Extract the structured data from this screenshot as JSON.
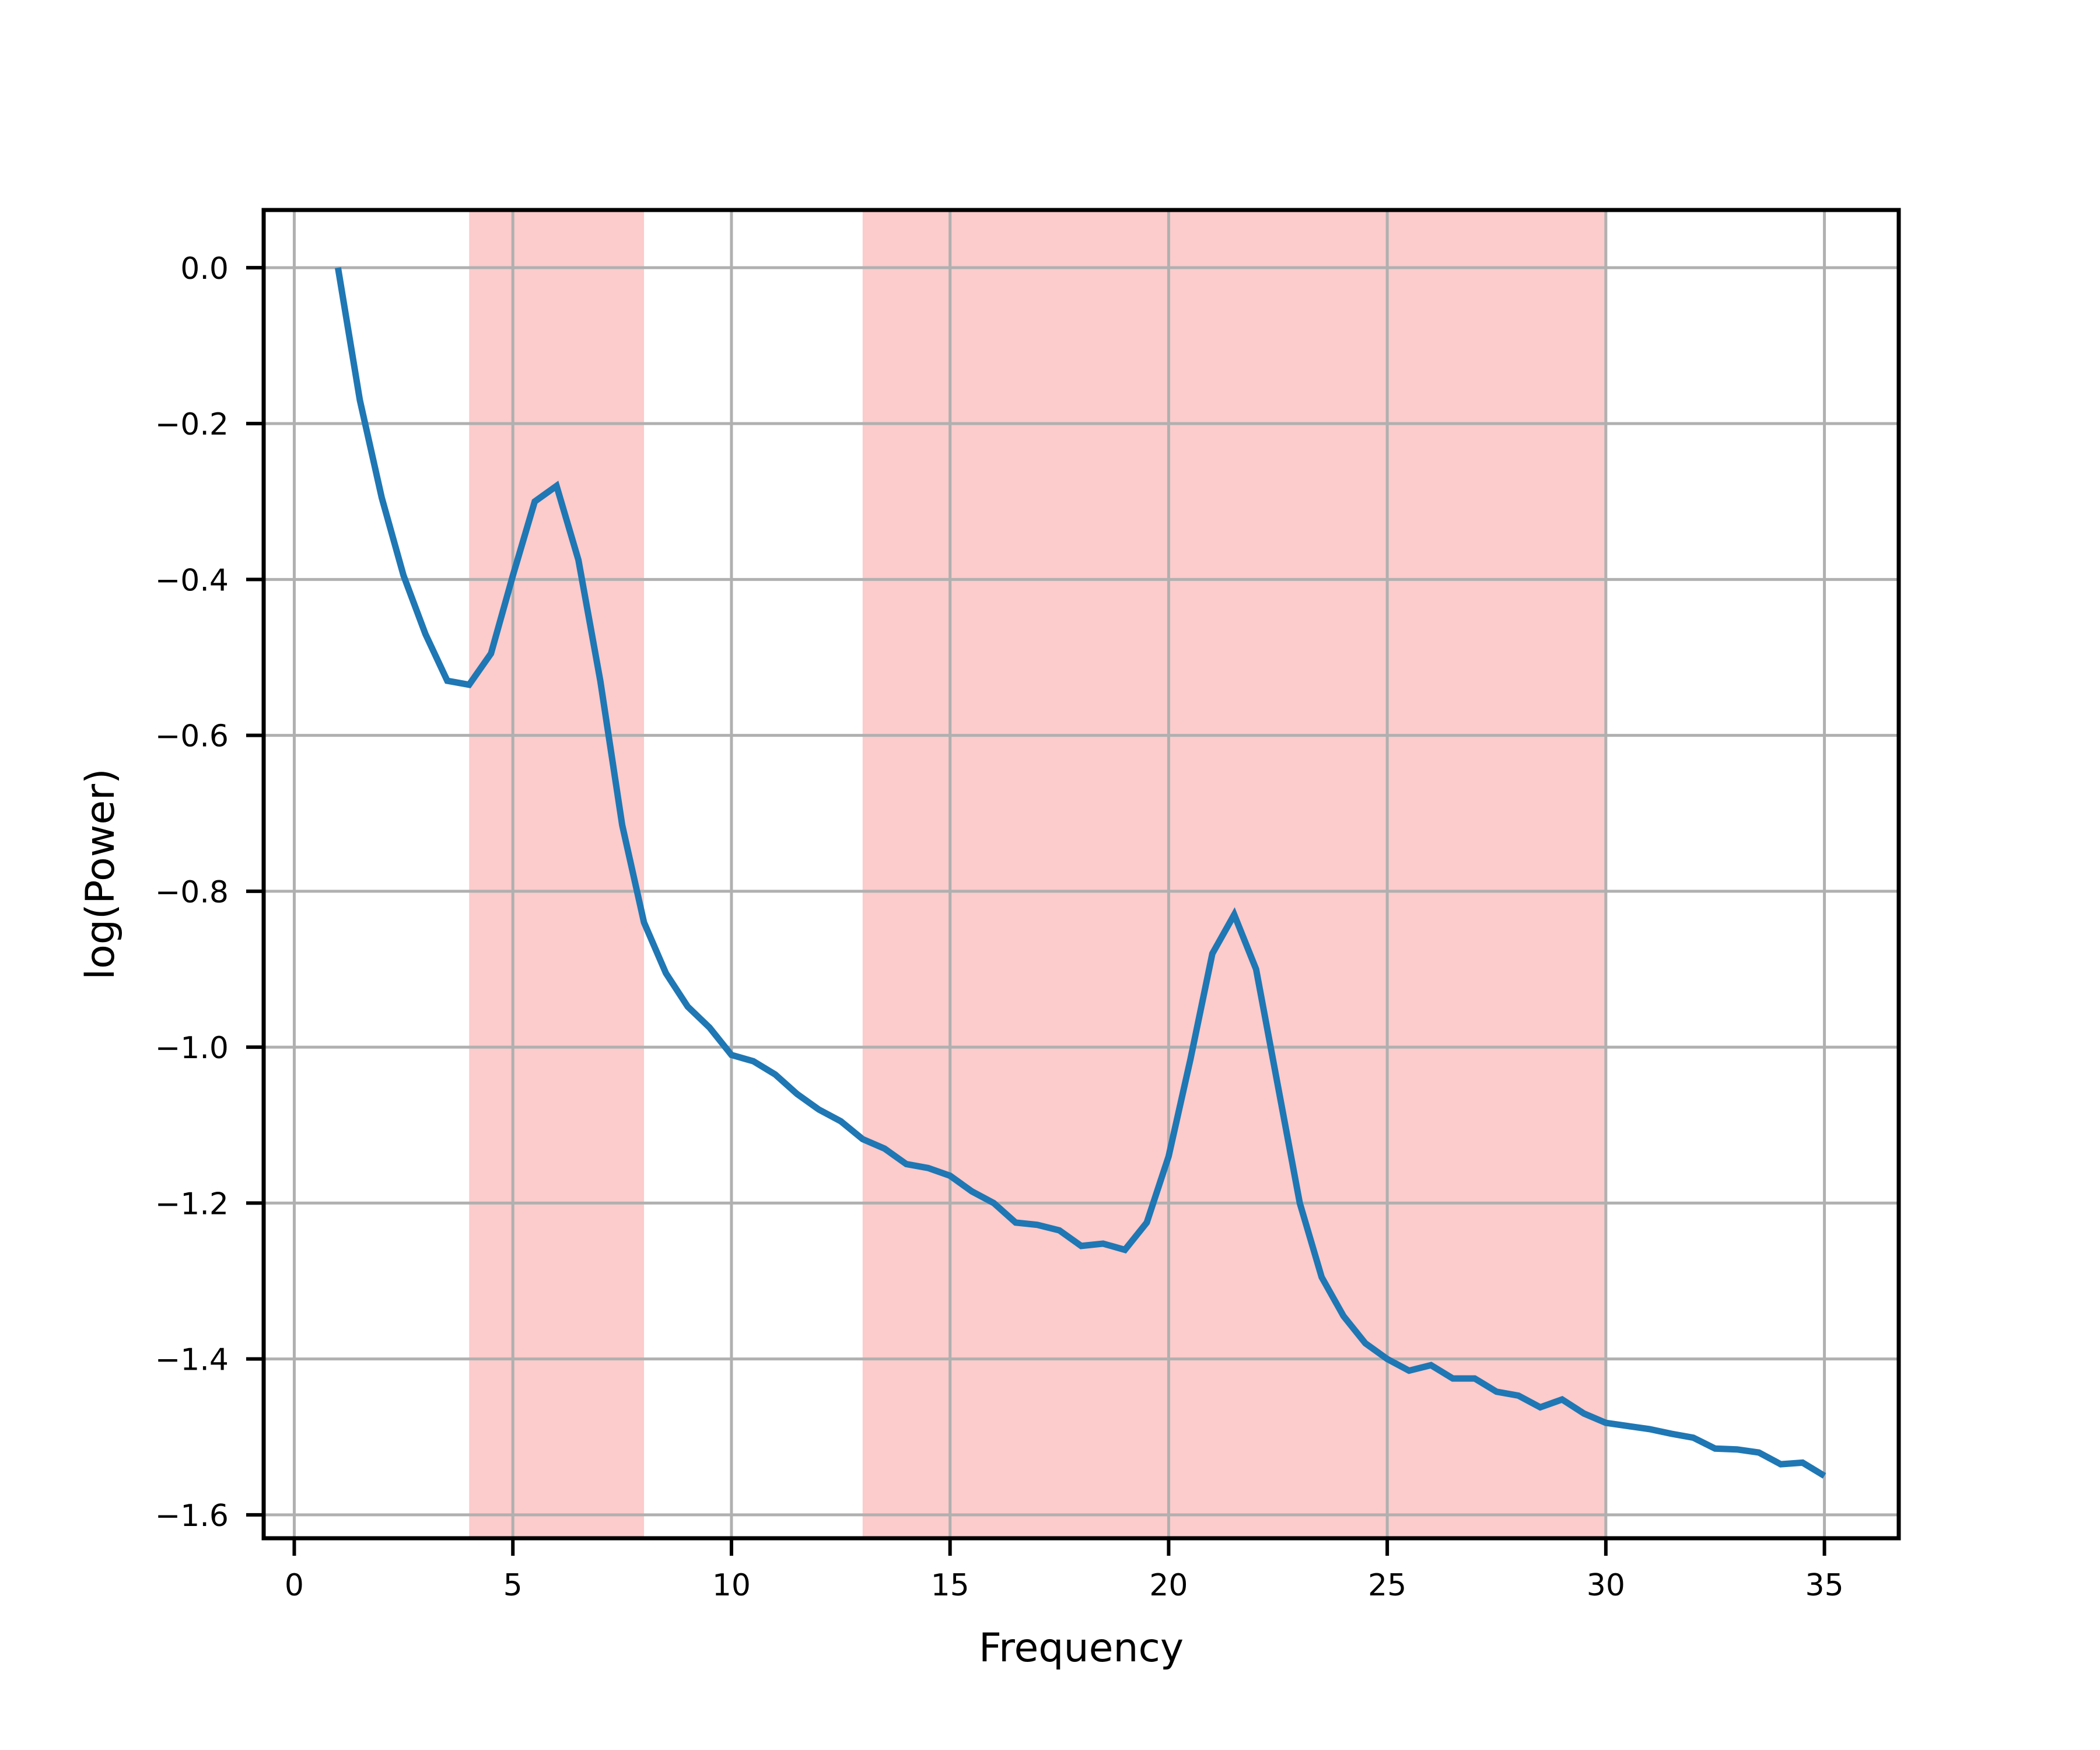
{
  "chart_data": {
    "type": "line",
    "title": "",
    "xlabel": "Frequency",
    "ylabel": "log(Power)",
    "xlim": [
      -0.7,
      36.7
    ],
    "ylim": [
      -1.63,
      0.074
    ],
    "xticks": [
      0,
      5,
      10,
      15,
      20,
      25,
      30,
      35
    ],
    "xtick_labels": [
      "0",
      "5",
      "10",
      "15",
      "20",
      "25",
      "30",
      "35"
    ],
    "yticks": [
      0.0,
      -0.2,
      -0.4,
      -0.6,
      -0.8,
      -1.0,
      -1.2,
      -1.4,
      -1.6
    ],
    "ytick_labels": [
      "0.0",
      "−0.2",
      "−0.4",
      "−0.6",
      "−0.8",
      "−1.0",
      "−1.2",
      "−1.4",
      "−1.6"
    ],
    "grid": true,
    "shaded_bands": [
      {
        "x_start": 4,
        "x_end": 8,
        "color": "#fccbcb"
      },
      {
        "x_start": 13,
        "x_end": 30,
        "color": "#fccbcb"
      }
    ],
    "series": [
      {
        "color": "#1f77b4",
        "x": [
          1,
          1.5,
          2,
          2.5,
          3,
          3.5,
          4,
          4.5,
          5,
          5.5,
          6,
          6.5,
          7,
          7.5,
          8,
          8.5,
          9,
          9.5,
          10,
          10.5,
          11,
          11.5,
          12,
          12.5,
          13,
          13.5,
          14,
          14.5,
          15,
          15.5,
          16,
          16.5,
          17,
          17.5,
          18,
          18.5,
          19,
          19.5,
          20,
          20.5,
          21,
          21.5,
          22,
          22.5,
          23,
          23.5,
          24,
          24.5,
          25,
          25.5,
          26,
          26.5,
          27,
          27.5,
          28,
          28.5,
          29,
          29.5,
          30,
          30.5,
          31,
          31.5,
          32,
          32.5,
          33,
          33.5,
          34,
          34.5,
          35
        ],
        "y": [
          0.0,
          -0.17,
          -0.295,
          -0.395,
          -0.47,
          -0.53,
          -0.535,
          -0.495,
          -0.395,
          -0.3,
          -0.28,
          -0.375,
          -0.53,
          -0.715,
          -0.84,
          -0.905,
          -0.948,
          -0.975,
          -1.01,
          -1.018,
          -1.035,
          -1.06,
          -1.08,
          -1.095,
          -1.118,
          -1.13,
          -1.15,
          -1.155,
          -1.165,
          -1.185,
          -1.2,
          -1.225,
          -1.228,
          -1.235,
          -1.255,
          -1.252,
          -1.26,
          -1.225,
          -1.14,
          -1.015,
          -0.88,
          -0.83,
          -0.9,
          -1.05,
          -1.2,
          -1.295,
          -1.345,
          -1.38,
          -1.4,
          -1.415,
          -1.408,
          -1.425,
          -1.425,
          -1.442,
          -1.447,
          -1.462,
          -1.452,
          -1.47,
          -1.482,
          -1.486,
          -1.49,
          -1.496,
          -1.501,
          -1.515,
          -1.516,
          -1.52,
          -1.535,
          -1.533,
          -1.55
        ]
      }
    ]
  }
}
